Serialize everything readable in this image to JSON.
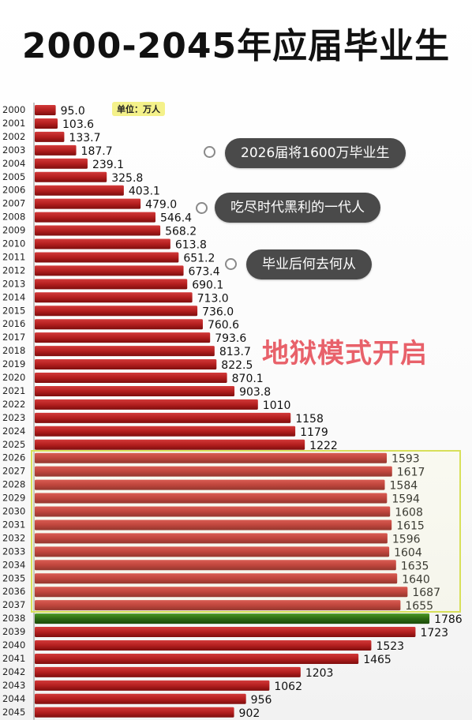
{
  "title": "2000-2045年应届毕业生",
  "unit_label": "单位：万人",
  "callouts": [
    "2026届将1600万毕业生",
    "吃尽时代黑利的一代人",
    "毕业后何去何从"
  ],
  "highlight_text": "地狱模式开启",
  "colors": {
    "bar": "#b41f1f",
    "bar_dark": "#7e0d0d",
    "bar_highlight": "#2d6a14",
    "callout_bg": "#4a4a4a",
    "highlight_text": "#e8616a",
    "unit_bg": "#f4f18a",
    "box_border": "#d8e05a"
  },
  "chart_data": {
    "type": "bar",
    "orientation": "horizontal",
    "categories": [
      "2000",
      "2001",
      "2002",
      "2003",
      "2004",
      "2005",
      "2006",
      "2007",
      "2008",
      "2009",
      "2010",
      "2011",
      "2012",
      "2013",
      "2014",
      "2015",
      "2016",
      "2017",
      "2018",
      "2019",
      "2020",
      "2021",
      "2022",
      "2023",
      "2024",
      "2025",
      "2026",
      "2027",
      "2028",
      "2029",
      "2030",
      "2031",
      "2032",
      "2033",
      "2034",
      "2035",
      "2036",
      "2037",
      "2038",
      "2039",
      "2040",
      "2041",
      "2042",
      "2043",
      "2044",
      "2045"
    ],
    "values": [
      95.0,
      103.6,
      133.7,
      187.7,
      239.1,
      325.8,
      403.1,
      479.0,
      546.4,
      568.2,
      613.8,
      651.2,
      673.4,
      690.1,
      713.0,
      736.0,
      760.6,
      793.6,
      813.7,
      822.5,
      870.1,
      903.8,
      1010,
      1158,
      1179,
      1222,
      1593,
      1617,
      1584,
      1594,
      1608,
      1615,
      1596,
      1604,
      1635,
      1640,
      1687,
      1655,
      1786,
      1723,
      1523,
      1465,
      1203,
      1062,
      956,
      902
    ],
    "value_labels": [
      "95.0",
      "103.6",
      "133.7",
      "187.7",
      "239.1",
      "325.8",
      "403.1",
      "479.0",
      "546.4",
      "568.2",
      "613.8",
      "651.2",
      "673.4",
      "690.1",
      "713.0",
      "736.0",
      "760.6",
      "793.6",
      "813.7",
      "822.5",
      "870.1",
      "903.8",
      "1010",
      "1158",
      "1179",
      "1222",
      "1593",
      "1617",
      "1584",
      "1594",
      "1608",
      "1615",
      "1596",
      "1604",
      "1635",
      "1640",
      "1687",
      "1655",
      "1786",
      "1723",
      "1523",
      "1465",
      "1203",
      "1062",
      "956",
      "902"
    ],
    "highlight_index": 38,
    "boxed_range": [
      "2026",
      "2037"
    ],
    "ylabel": "",
    "xlabel": ""
  }
}
